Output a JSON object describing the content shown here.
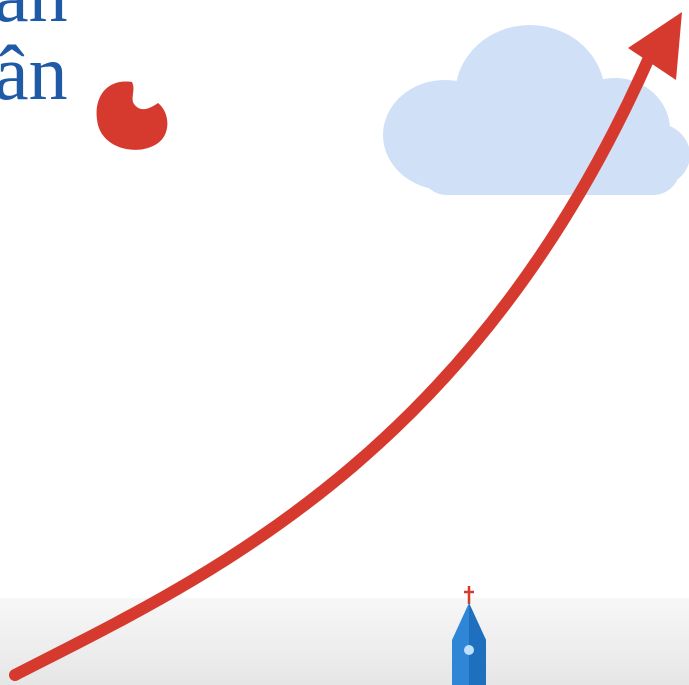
{
  "text": {
    "line1": "an",
    "line2": "ân"
  }
}
